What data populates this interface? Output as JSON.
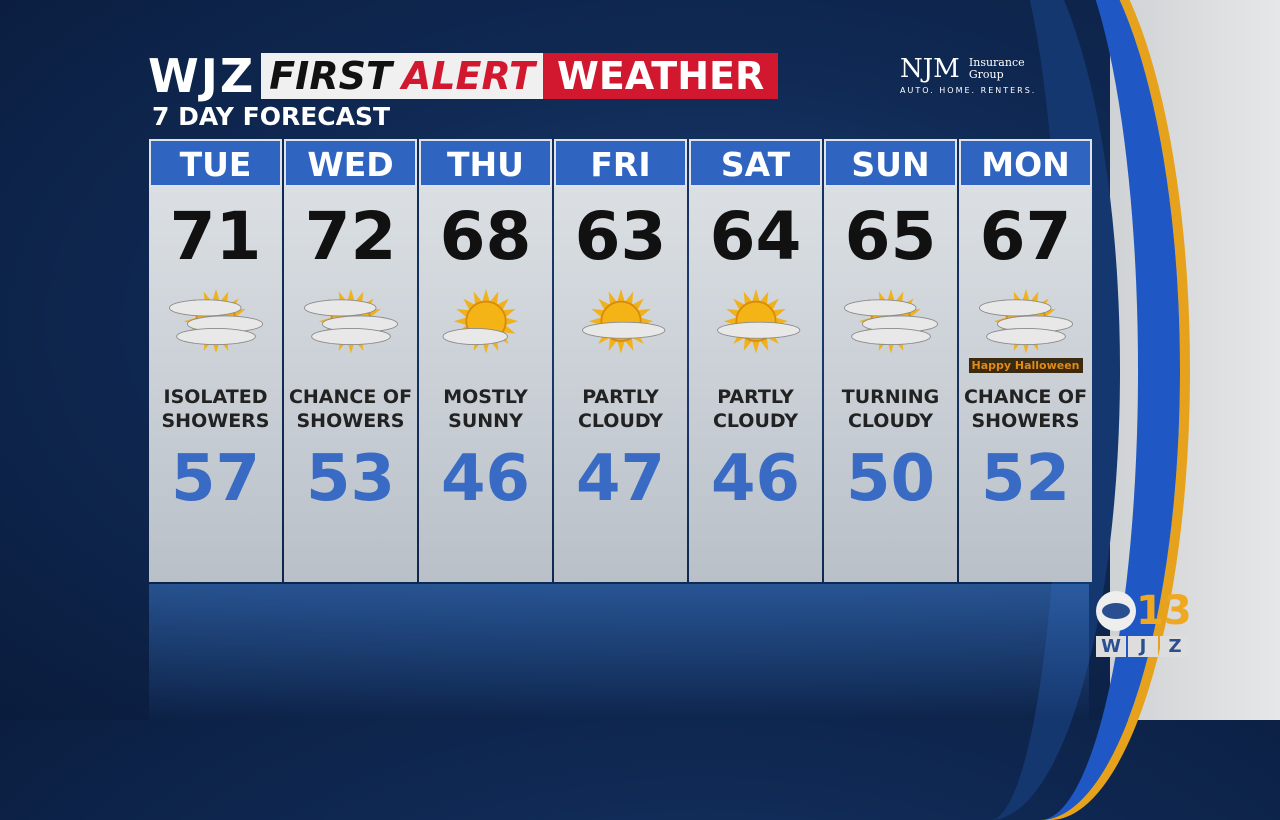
{
  "header": {
    "station": "WJZ",
    "first": "FIRST",
    "alert": "ALERT",
    "weather": "WEATHER",
    "subtitle": "7 DAY FORECAST"
  },
  "sponsor": {
    "name": "NJM",
    "group": "Insurance Group",
    "tagline": "AUTO. HOME. RENTERS."
  },
  "logo": {
    "network": "CBS",
    "channel": "13",
    "callsign": [
      "W",
      "J",
      "Z"
    ]
  },
  "colors": {
    "header_blue": "#2f64c0",
    "alert_red": "#d2182f",
    "low_temp": "#3a6bc4"
  },
  "days": [
    {
      "day": "TUE",
      "high": "71",
      "low": "57",
      "condition": "ISOLATED SHOWERS",
      "icon": "partly-cloudy-icon"
    },
    {
      "day": "WED",
      "high": "72",
      "low": "53",
      "condition": "CHANCE OF SHOWERS",
      "icon": "partly-cloudy-icon"
    },
    {
      "day": "THU",
      "high": "68",
      "low": "46",
      "condition": "MOSTLY SUNNY",
      "icon": "mostly-sunny-icon"
    },
    {
      "day": "FRI",
      "high": "63",
      "low": "47",
      "condition": "PARTLY CLOUDY",
      "icon": "partly-sunny-icon"
    },
    {
      "day": "SAT",
      "high": "64",
      "low": "46",
      "condition": "PARTLY CLOUDY",
      "icon": "partly-sunny-icon"
    },
    {
      "day": "SUN",
      "high": "65",
      "low": "50",
      "condition": "TURNING CLOUDY",
      "icon": "partly-cloudy-icon"
    },
    {
      "day": "MON",
      "high": "67",
      "low": "52",
      "condition": "CHANCE OF SHOWERS",
      "icon": "partly-cloudy-halloween-icon",
      "badge": "Happy Halloween"
    }
  ]
}
